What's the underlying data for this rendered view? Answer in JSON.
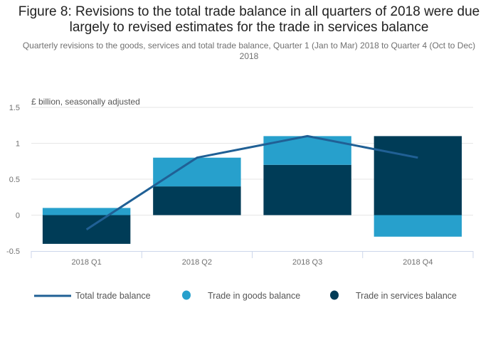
{
  "chart_data": {
    "type": "bar",
    "stacked": true,
    "title": "Figure 8: Revisions to the total trade balance in all quarters of 2018 were due largely to revised estimates for the trade in services balance",
    "subtitle": "Quarterly revisions to the goods, services and total trade balance, Quarter 1 (Jan to Mar) 2018 to Quarter 4 (Oct to Dec) 2018",
    "ylabel": "£ billion, seasonally adjusted",
    "xlabel": "",
    "categories": [
      "2018 Q1",
      "2018 Q2",
      "2018 Q3",
      "2018 Q4"
    ],
    "ylim": [
      -0.5,
      1.5
    ],
    "yticks": [
      -0.5,
      0,
      0.5,
      1,
      1.5
    ],
    "ytick_labels": [
      "-0.5",
      "0",
      "0.5",
      "1",
      "1.5"
    ],
    "grid": true,
    "legend_position": "bottom",
    "series": [
      {
        "name": "Total trade balance",
        "kind": "line",
        "color": "#206095",
        "values": [
          -0.2,
          0.8,
          1.1,
          0.8
        ]
      },
      {
        "name": "Trade in goods balance",
        "kind": "bar",
        "color": "#27a0cc",
        "values": [
          0.1,
          0.4,
          0.4,
          -0.3
        ]
      },
      {
        "name": "Trade in services balance",
        "kind": "bar",
        "color": "#003c57",
        "values": [
          -0.4,
          0.4,
          0.7,
          1.1
        ]
      }
    ]
  }
}
